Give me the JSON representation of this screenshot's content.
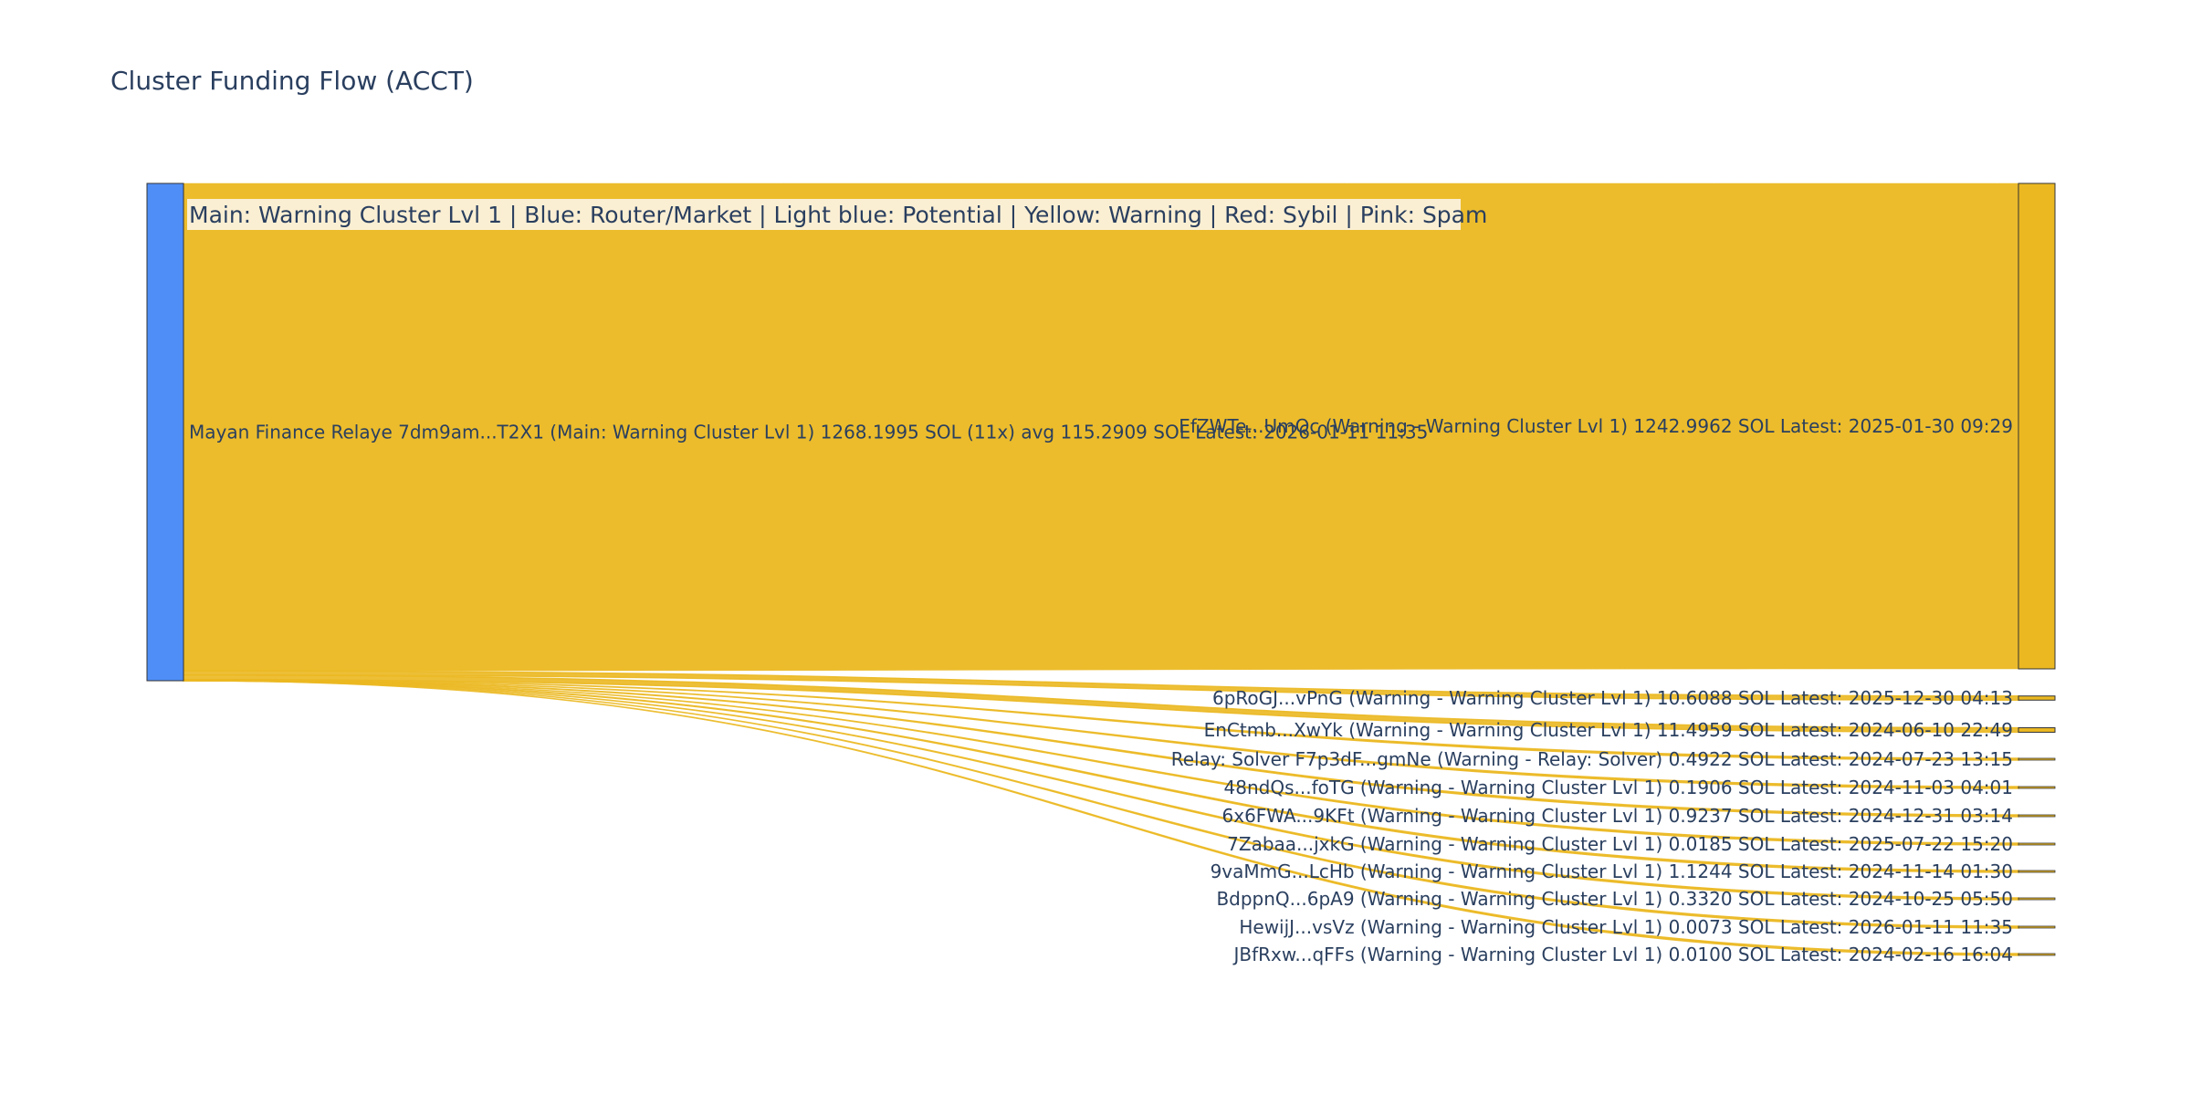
{
  "title": "Cluster Funding Flow (ACCT)",
  "legend_text": "Main: Warning Cluster Lvl 1  |  Blue: Router/Market | Light blue: Potential | Yellow: Warning | Red: Sybil | Pink: Spam",
  "colors": {
    "source_node": "#4f8ef7",
    "warning": "#ebb821",
    "link": "#ebb821",
    "legend_bg": "#fbefd3",
    "node_border": "#333333",
    "label": "#2a3f5f"
  },
  "chart_data": {
    "type": "sankey",
    "title": "Cluster Funding Flow (ACCT)",
    "source": {
      "label": "Mayan Finance Relaye 7dm9am...T2X1 (Main: Warning Cluster Lvl 1) 1268.1995 SOL (11x) avg 115.2909 SOL Latest: 2026-01-11 11:35",
      "total": 1268.1995,
      "color": "#4f8ef7"
    },
    "targets": [
      {
        "label": "EfZWTe...UmQc (Warning - Warning Cluster Lvl 1) 1242.9962 SOL Latest: 2025-01-30 09:29",
        "value": 1242.9962
      },
      {
        "label": "6pRoGJ...vPnG (Warning - Warning Cluster Lvl 1) 10.6088 SOL Latest: 2025-12-30 04:13",
        "value": 10.6088
      },
      {
        "label": "EnCtmb...XwYk (Warning - Warning Cluster Lvl 1) 11.4959 SOL Latest: 2024-06-10 22:49",
        "value": 11.4959
      },
      {
        "label": "Relay: Solver F7p3dF...gmNe (Warning - Relay: Solver) 0.4922 SOL Latest: 2024-07-23 13:15",
        "value": 0.4922
      },
      {
        "label": "48ndQs...foTG (Warning - Warning Cluster Lvl 1) 0.1906 SOL Latest: 2024-11-03 04:01",
        "value": 0.1906
      },
      {
        "label": "6x6FWA...9KFt (Warning - Warning Cluster Lvl 1) 0.9237 SOL Latest: 2024-12-31 03:14",
        "value": 0.9237
      },
      {
        "label": "7Zabaa...jxkG (Warning - Warning Cluster Lvl 1) 0.0185 SOL Latest: 2025-07-22 15:20",
        "value": 0.0185
      },
      {
        "label": "9vaMmG...LcHb (Warning - Warning Cluster Lvl 1) 1.1244 SOL Latest: 2024-11-14 01:30",
        "value": 1.1244
      },
      {
        "label": "BdppnQ...6pA9 (Warning - Warning Cluster Lvl 1) 0.3320 SOL Latest: 2024-10-25 05:50",
        "value": 0.332
      },
      {
        "label": "HewijJ...vsVz (Warning - Warning Cluster Lvl 1) 0.0073 SOL Latest: 2026-01-11 11:35",
        "value": 0.0073
      },
      {
        "label": "JBfRxw...qFFs (Warning - Warning Cluster Lvl 1) 0.0100 SOL Latest: 2024-02-16 16:04",
        "value": 0.01
      }
    ]
  }
}
